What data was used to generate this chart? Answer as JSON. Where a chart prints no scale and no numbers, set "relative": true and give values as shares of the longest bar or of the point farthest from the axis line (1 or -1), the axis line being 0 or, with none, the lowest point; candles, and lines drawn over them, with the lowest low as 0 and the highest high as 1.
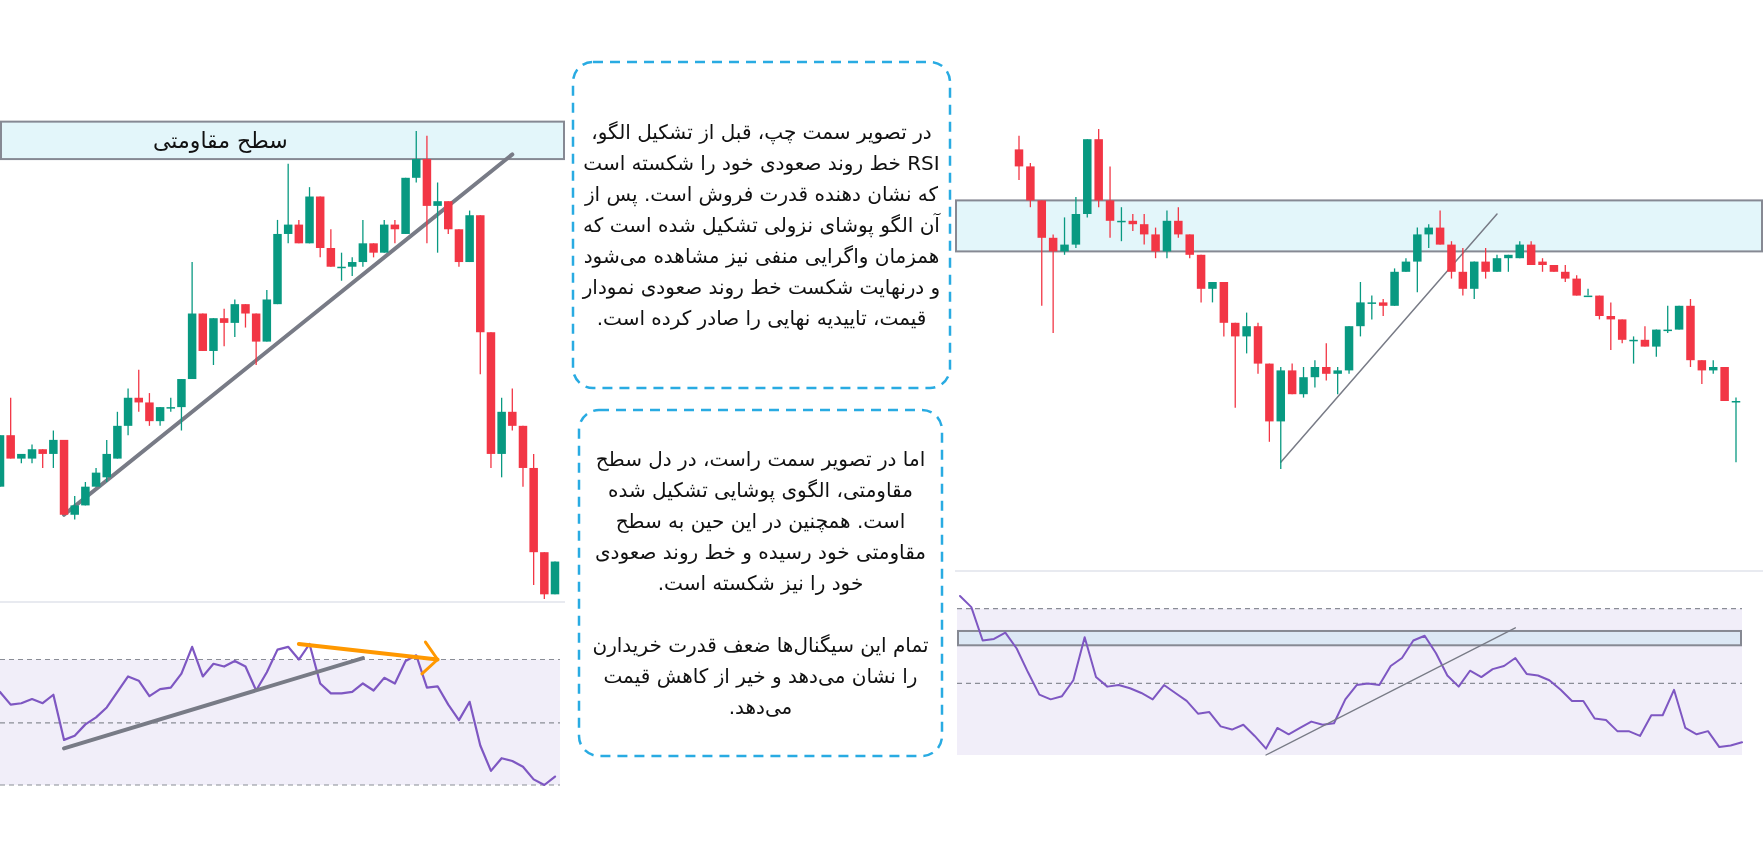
{
  "chart_data": [
    {
      "type": "candlestick",
      "relative": true,
      "categories": [
        null,
        null,
        null,
        null,
        null,
        null,
        null,
        null,
        null,
        null,
        null,
        null,
        null,
        null,
        null,
        null,
        null,
        null,
        null,
        null,
        null,
        null,
        null,
        null,
        null,
        null,
        null,
        null,
        null,
        null,
        null,
        null,
        null,
        null,
        null,
        null,
        null,
        null,
        null,
        null,
        null,
        null,
        null,
        null,
        null,
        null,
        null,
        null,
        null,
        null,
        null,
        null,
        null
      ],
      "ohlc": [
        [
          0.24,
          0.35,
          0.24,
          0.35
        ],
        [
          0.35,
          0.43,
          0.3,
          0.3
        ],
        [
          0.3,
          0.31,
          0.29,
          0.31
        ],
        [
          0.3,
          0.33,
          0.29,
          0.32
        ],
        [
          0.32,
          0.32,
          0.28,
          0.31
        ],
        [
          0.31,
          0.36,
          0.28,
          0.34
        ],
        [
          0.34,
          0.34,
          0.18,
          0.18
        ],
        [
          0.18,
          0.22,
          0.17,
          0.2
        ],
        [
          0.2,
          0.25,
          0.2,
          0.24
        ],
        [
          0.24,
          0.28,
          0.24,
          0.27
        ],
        [
          0.26,
          0.34,
          0.25,
          0.31
        ],
        [
          0.3,
          0.4,
          0.3,
          0.37
        ],
        [
          0.37,
          0.45,
          0.35,
          0.43
        ],
        [
          0.43,
          0.49,
          0.4,
          0.42
        ],
        [
          0.42,
          0.44,
          0.37,
          0.38
        ],
        [
          0.38,
          0.41,
          0.37,
          0.41
        ],
        [
          0.41,
          0.43,
          0.4,
          0.41
        ],
        [
          0.41,
          0.47,
          0.36,
          0.47
        ],
        [
          0.47,
          0.72,
          0.47,
          0.61
        ],
        [
          0.61,
          0.61,
          0.53,
          0.53
        ],
        [
          0.53,
          0.6,
          0.5,
          0.6
        ],
        [
          0.6,
          0.62,
          0.54,
          0.59
        ],
        [
          0.59,
          0.64,
          0.56,
          0.63
        ],
        [
          0.63,
          0.63,
          0.58,
          0.61
        ],
        [
          0.61,
          0.61,
          0.5,
          0.55
        ],
        [
          0.55,
          0.66,
          0.55,
          0.64
        ],
        [
          0.63,
          0.81,
          0.63,
          0.78
        ],
        [
          0.78,
          0.93,
          0.76,
          0.8
        ],
        [
          0.8,
          0.81,
          0.76,
          0.76
        ],
        [
          0.76,
          0.88,
          0.76,
          0.86
        ],
        [
          0.86,
          0.86,
          0.73,
          0.75
        ],
        [
          0.75,
          0.79,
          0.71,
          0.71
        ],
        [
          0.71,
          0.74,
          0.68,
          0.71
        ],
        [
          0.71,
          0.73,
          0.69,
          0.72
        ],
        [
          0.72,
          0.81,
          0.71,
          0.76
        ],
        [
          0.76,
          0.76,
          0.73,
          0.74
        ],
        [
          0.74,
          0.81,
          0.74,
          0.8
        ],
        [
          0.8,
          0.81,
          0.76,
          0.79
        ],
        [
          0.78,
          0.9,
          0.78,
          0.9
        ],
        [
          0.9,
          1.0,
          0.89,
          0.94
        ],
        [
          0.94,
          0.99,
          0.76,
          0.84
        ],
        [
          0.84,
          0.89,
          0.74,
          0.85
        ],
        [
          0.85,
          0.85,
          0.78,
          0.79
        ],
        [
          0.79,
          0.79,
          0.71,
          0.72
        ],
        [
          0.72,
          0.83,
          0.72,
          0.82
        ],
        [
          0.82,
          0.82,
          0.48,
          0.57
        ],
        [
          0.57,
          0.57,
          0.28,
          0.31
        ],
        [
          0.31,
          0.43,
          0.26,
          0.4
        ],
        [
          0.4,
          0.45,
          0.36,
          0.37
        ],
        [
          0.37,
          0.37,
          0.24,
          0.28
        ],
        [
          0.28,
          0.31,
          0.03,
          0.1
        ],
        [
          0.1,
          0.1,
          0.0,
          0.01
        ],
        [
          0.01,
          0.08,
          0.01,
          0.08
        ]
      ],
      "bands": [
        {
          "axis": "y",
          "from": 0.94,
          "to": 1.02,
          "label": "سطح مقاومتی",
          "color": "#e3f6fa"
        }
      ],
      "series": [
        {
          "type": "line",
          "color": "#787b86",
          "values": [
            null,
            null,
            null,
            null,
            null,
            null,
            0.18,
            null,
            null,
            null,
            null,
            null,
            null,
            null,
            null,
            null,
            null,
            null,
            null,
            null,
            null,
            null,
            null,
            null,
            null,
            null,
            null,
            null,
            null,
            null,
            null,
            null,
            null,
            null,
            null,
            null,
            null,
            null,
            null,
            null,
            null,
            null,
            null,
            null,
            null,
            null,
            null,
            null,
            0.95,
            null,
            null,
            null,
            null
          ]
        }
      ]
    },
    {
      "type": "line",
      "relative": true,
      "categories": [
        null,
        null,
        null,
        null,
        null,
        null,
        null,
        null,
        null,
        null,
        null,
        null,
        null,
        null,
        null,
        null,
        null,
        null,
        null,
        null,
        null,
        null,
        null,
        null,
        null,
        null,
        null,
        null,
        null,
        null,
        null,
        null,
        null,
        null,
        null,
        null,
        null,
        null,
        null,
        null,
        null,
        null,
        null,
        null,
        null,
        null,
        null,
        null,
        null,
        null,
        null,
        null,
        null
      ],
      "series": [
        {
          "color": "#7e57c2",
          "values": [
            0.66,
            0.57,
            0.58,
            0.61,
            0.58,
            0.64,
            0.32,
            0.35,
            0.43,
            0.48,
            0.55,
            0.66,
            0.77,
            0.74,
            0.63,
            0.68,
            0.69,
            0.79,
            0.98,
            0.77,
            0.86,
            0.84,
            0.88,
            0.84,
            0.67,
            0.8,
            0.96,
            0.98,
            0.89,
            1.0,
            0.72,
            0.65,
            0.65,
            0.66,
            0.72,
            0.67,
            0.76,
            0.72,
            0.88,
            0.92,
            0.69,
            0.7,
            0.57,
            0.46,
            0.59,
            0.28,
            0.1,
            0.19,
            0.17,
            0.13,
            0.04,
            0,
            0.06
          ]
        },
        {
          "type": "line",
          "color": "#787b86",
          "values": [
            null,
            null,
            null,
            null,
            null,
            null,
            0.26,
            null,
            null,
            null,
            null,
            null,
            null,
            null,
            null,
            null,
            null,
            null,
            null,
            null,
            null,
            null,
            null,
            null,
            null,
            null,
            null,
            null,
            null,
            null,
            null,
            null,
            null,
            null,
            0.9,
            null,
            null,
            null,
            null,
            null,
            null,
            null,
            null,
            null,
            null,
            null,
            null,
            null,
            null,
            null,
            null,
            null,
            null
          ]
        },
        {
          "type": "line",
          "color": "#ff9800",
          "values": [
            null,
            null,
            null,
            null,
            null,
            null,
            null,
            null,
            null,
            null,
            null,
            null,
            null,
            null,
            null,
            null,
            null,
            null,
            null,
            null,
            null,
            null,
            null,
            null,
            null,
            null,
            null,
            null,
            1.0,
            null,
            null,
            null,
            null,
            null,
            null,
            null,
            null,
            null,
            null,
            null,
            null,
            0.89,
            null,
            null,
            null,
            null,
            null,
            null,
            null,
            null,
            null,
            null,
            null
          ]
        }
      ],
      "bands": [
        {
          "axis": "y",
          "from": 0,
          "to": 0.89,
          "color": "#f1eef9"
        }
      ],
      "ref_lines": [
        {
          "axis": "y",
          "value": 0.89,
          "line_style": "dashed"
        },
        {
          "axis": "y",
          "value": 0.44,
          "line_style": "dashed"
        },
        {
          "axis": "y",
          "value": 0,
          "line_style": "dashed"
        }
      ]
    },
    {
      "type": "other",
      "annotations": [
        "در تصویر سمت چپ، قبل از تشکیل الگو، RSI خط روند صعودی خود را شکسته است که نشان دهنده قدرت فروش است. پس از آن الگو پوشای نزولی تشکیل شده است که همزمان واگرایی منفی نیز مشاهده می‌شود و درنهایت شکست خط روند صعودی نمودار قیمت، تاییدیه نهایی را صادر کرده است."
      ]
    },
    {
      "type": "other",
      "annotations": [
        "اما در تصویر سمت راست، در دل سطح مقاومتی، الگوی پوشایی تشکیل شده است. همچنین در این حین به سطح مقاومتی خود رسیده و خط روند صعودی خود را نیز شکسته است.",
        "تمام این سیگنال‌ها ضعف قدرت خریدارن را نشان می‌دهد و خیر از کاهش قیمت می‌دهد."
      ]
    },
    {
      "type": "candlestick",
      "relative": true,
      "categories": [
        null,
        null,
        null,
        null,
        null,
        null,
        null,
        null,
        null,
        null,
        null,
        null,
        null,
        null,
        null,
        null,
        null,
        null,
        null,
        null,
        null,
        null,
        null,
        null,
        null,
        null,
        null,
        null,
        null,
        null,
        null,
        null,
        null,
        null,
        null,
        null,
        null,
        null,
        null,
        null,
        null,
        null,
        null,
        null,
        null,
        null,
        null,
        null,
        null,
        null,
        null,
        null,
        null,
        null,
        null,
        null,
        null,
        null,
        null,
        null,
        null,
        null,
        null,
        null
      ],
      "ohlc": [
        [
          0.94,
          0.98,
          0.85,
          0.89
        ],
        [
          0.89,
          0.9,
          0.77,
          0.79
        ],
        [
          0.79,
          0.79,
          0.48,
          0.68
        ],
        [
          0.68,
          0.69,
          0.4,
          0.64
        ],
        [
          0.64,
          0.74,
          0.63,
          0.66
        ],
        [
          0.66,
          0.8,
          0.65,
          0.75
        ],
        [
          0.75,
          0.97,
          0.74,
          0.97
        ],
        [
          0.97,
          1.0,
          0.77,
          0.79
        ],
        [
          0.79,
          0.89,
          0.68,
          0.73
        ],
        [
          0.73,
          0.77,
          0.67,
          0.73
        ],
        [
          0.73,
          0.75,
          0.7,
          0.72
        ],
        [
          0.72,
          0.75,
          0.66,
          0.69
        ],
        [
          0.69,
          0.71,
          0.62,
          0.64
        ],
        [
          0.64,
          0.76,
          0.62,
          0.73
        ],
        [
          0.73,
          0.77,
          0.68,
          0.69
        ],
        [
          0.69,
          0.69,
          0.62,
          0.63
        ],
        [
          0.63,
          0.63,
          0.49,
          0.53
        ],
        [
          0.53,
          0.55,
          0.49,
          0.55
        ],
        [
          0.55,
          0.55,
          0.39,
          0.43
        ],
        [
          0.43,
          0.43,
          0.18,
          0.39
        ],
        [
          0.39,
          0.46,
          0.34,
          0.42
        ],
        [
          0.42,
          0.43,
          0.28,
          0.31
        ],
        [
          0.31,
          0.31,
          0.08,
          0.14
        ],
        [
          0.14,
          0.3,
          0.0,
          0.29
        ],
        [
          0.29,
          0.31,
          0.22,
          0.22
        ],
        [
          0.22,
          0.3,
          0.21,
          0.27
        ],
        [
          0.27,
          0.32,
          0.24,
          0.3
        ],
        [
          0.3,
          0.37,
          0.26,
          0.28
        ],
        [
          0.28,
          0.3,
          0.22,
          0.29
        ],
        [
          0.29,
          0.42,
          0.28,
          0.42
        ],
        [
          0.42,
          0.55,
          0.39,
          0.49
        ],
        [
          0.49,
          0.51,
          0.44,
          0.49
        ],
        [
          0.49,
          0.5,
          0.45,
          0.48
        ],
        [
          0.48,
          0.59,
          0.48,
          0.58
        ],
        [
          0.58,
          0.62,
          0.58,
          0.61
        ],
        [
          0.61,
          0.71,
          0.52,
          0.69
        ],
        [
          0.69,
          0.72,
          0.65,
          0.71
        ],
        [
          0.71,
          0.76,
          0.66,
          0.66
        ],
        [
          0.66,
          0.67,
          0.56,
          0.58
        ],
        [
          0.58,
          0.65,
          0.51,
          0.53
        ],
        [
          0.53,
          0.61,
          0.5,
          0.61
        ],
        [
          0.61,
          0.65,
          0.56,
          0.58
        ],
        [
          0.58,
          0.63,
          0.58,
          0.62
        ],
        [
          0.62,
          0.63,
          0.58,
          0.63
        ],
        [
          0.62,
          0.67,
          0.62,
          0.66
        ],
        [
          0.66,
          0.67,
          0.6,
          0.6
        ],
        [
          0.61,
          0.62,
          0.58,
          0.6
        ],
        [
          0.6,
          0.6,
          0.58,
          0.58
        ],
        [
          0.58,
          0.6,
          0.55,
          0.56
        ],
        [
          0.56,
          0.57,
          0.51,
          0.51
        ],
        [
          0.51,
          0.53,
          0.51,
          0.51
        ],
        [
          0.51,
          0.51,
          0.44,
          0.45
        ],
        [
          0.45,
          0.49,
          0.35,
          0.44
        ],
        [
          0.44,
          0.44,
          0.37,
          0.38
        ],
        [
          0.38,
          0.39,
          0.31,
          0.38
        ],
        [
          0.38,
          0.42,
          0.36,
          0.36
        ],
        [
          0.36,
          0.41,
          0.33,
          0.41
        ],
        [
          0.41,
          0.48,
          0.4,
          0.41
        ],
        [
          0.41,
          0.48,
          0.41,
          0.48
        ],
        [
          0.48,
          0.5,
          0.3,
          0.32
        ],
        [
          0.32,
          0.32,
          0.25,
          0.29
        ],
        [
          0.29,
          0.32,
          0.28,
          0.3
        ],
        [
          0.3,
          0.3,
          0.2,
          0.2
        ],
        [
          0.2,
          0.21,
          0.02,
          0.2
        ]
      ],
      "bands": [
        {
          "axis": "y",
          "from": 0.64,
          "to": 0.79,
          "color": "#e3f6fa"
        }
      ],
      "series": [
        {
          "type": "line",
          "color": "#787b86",
          "values": [
            null,
            null,
            null,
            null,
            null,
            null,
            null,
            null,
            null,
            null,
            null,
            null,
            null,
            null,
            null,
            null,
            null,
            null,
            null,
            null,
            null,
            null,
            null,
            0.02,
            null,
            null,
            null,
            null,
            null,
            null,
            null,
            null,
            null,
            null,
            null,
            null,
            null,
            null,
            null,
            null,
            null,
            null,
            0.75,
            null,
            null,
            null,
            null,
            null,
            null,
            null,
            null,
            null,
            null,
            null,
            null,
            null,
            null,
            null,
            null,
            null,
            null,
            null,
            null,
            null
          ]
        }
      ]
    },
    {
      "type": "line",
      "relative": true,
      "categories": [
        null,
        null,
        null,
        null,
        null,
        null,
        null,
        null,
        null,
        null,
        null,
        null,
        null,
        null,
        null,
        null,
        null,
        null,
        null,
        null,
        null,
        null,
        null,
        null,
        null,
        null,
        null,
        null,
        null,
        null,
        null,
        null,
        null,
        null,
        null,
        null,
        null,
        null,
        null,
        null,
        null,
        null,
        null,
        null,
        null,
        null,
        null,
        null,
        null,
        null,
        null,
        null,
        null,
        null,
        null,
        null,
        null,
        null,
        null,
        null,
        null,
        null,
        null,
        null,
        null,
        null,
        null,
        null,
        null,
        null
      ],
      "series": [
        {
          "color": "#7e57c2",
          "values": [
            1.0,
            0.93,
            0.72,
            0.73,
            0.77,
            0.67,
            0.52,
            0.38,
            0.35,
            0.37,
            0.47,
            0.74,
            0.49,
            0.43,
            0.44,
            0.42,
            0.39,
            0.35,
            0.44,
            0.39,
            0.34,
            0.26,
            0.27,
            0.18,
            0.16,
            0.19,
            0.12,
            0.04,
            0.17,
            0.13,
            0.17,
            0.21,
            0.19,
            0.2,
            0.35,
            0.44,
            0.45,
            0.44,
            0.56,
            0.61,
            0.72,
            0.75,
            0.64,
            0.5,
            0.43,
            0.53,
            0.49,
            0.54,
            0.56,
            0.61,
            0.51,
            0.5,
            0.47,
            0.41,
            0.34,
            0.34,
            0.23,
            0.22,
            0.15,
            0.15,
            0.12,
            0.25,
            0.25,
            0.41,
            0.17,
            0.13,
            0.15,
            0.05,
            0.06,
            0.08
          ]
        },
        {
          "type": "line",
          "color": "#787b86",
          "values": [
            null,
            null,
            null,
            null,
            null,
            null,
            null,
            null,
            null,
            null,
            null,
            null,
            null,
            null,
            null,
            null,
            null,
            null,
            null,
            null,
            null,
            null,
            null,
            null,
            null,
            null,
            null,
            0,
            null,
            null,
            null,
            null,
            null,
            null,
            null,
            null,
            null,
            null,
            null,
            null,
            null,
            null,
            null,
            null,
            null,
            null,
            null,
            null,
            null,
            0.8,
            null,
            null,
            null,
            null,
            null,
            null,
            null,
            null,
            null,
            null,
            null,
            null,
            null,
            null,
            null,
            null,
            null,
            null,
            null,
            null
          ]
        }
      ],
      "bands": [
        {
          "axis": "y",
          "from": 0,
          "to": 0.92,
          "color": "#f1eef9"
        },
        {
          "axis": "y",
          "from": 0.69,
          "to": 0.78,
          "color": "#dce8f5"
        }
      ],
      "ref_lines": [
        {
          "axis": "y",
          "value": 0.92,
          "line_style": "dashed"
        },
        {
          "axis": "y",
          "value": 0.45,
          "line_style": "dashed"
        }
      ]
    }
  ]
}
